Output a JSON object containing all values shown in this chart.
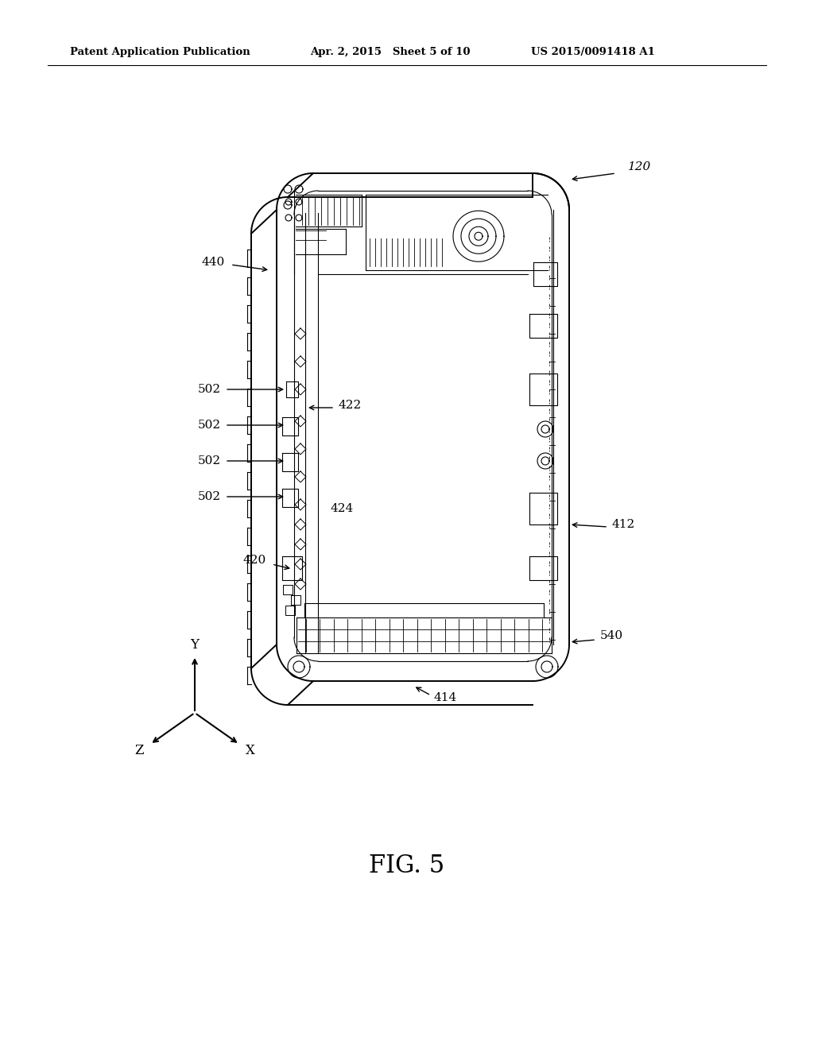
{
  "bg_color": "#ffffff",
  "header_left": "Patent Application Publication",
  "header_mid": "Apr. 2, 2015   Sheet 5 of 10",
  "header_right": "US 2015/0091418 A1",
  "fig_label": "FIG. 5",
  "ref_120": "120",
  "ref_440": "440",
  "ref_422": "422",
  "ref_502_list": [
    "502",
    "502",
    "502",
    "502"
  ],
  "ref_424": "424",
  "ref_420": "420",
  "ref_412": "412",
  "ref_414": "414",
  "ref_540": "540",
  "axis_x": "X",
  "axis_y": "Y",
  "axis_z": "Z",
  "lw_main": 1.4,
  "lw_thin": 0.8,
  "lw_thick": 2.0
}
